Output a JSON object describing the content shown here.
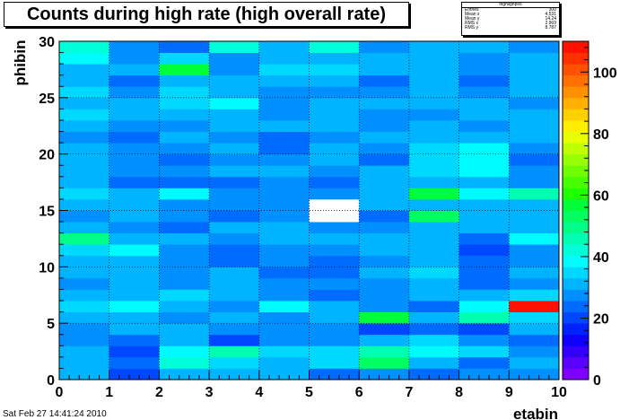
{
  "title": "Counts during high rate (high overall rate)",
  "footer": "Sat Feb 27 14:41:24 2010",
  "stats": {
    "name": "highlighpos",
    "rows": [
      {
        "label": "Entries",
        "value": "300"
      },
      {
        "label": "Mean x",
        "value": "4.531"
      },
      {
        "label": "Mean y",
        "value": "14.24"
      },
      {
        "label": "RMS x",
        "value": "2.969"
      },
      {
        "label": "RMS y",
        "value": "8.787"
      }
    ]
  },
  "chart_data": {
    "type": "heatmap",
    "title": "Counts during high rate (high overall rate)",
    "xlabel": "etabin",
    "ylabel": "phibin",
    "xlim": [
      0,
      10
    ],
    "ylim": [
      0,
      30
    ],
    "x_ticks": [
      "0",
      "1",
      "2",
      "3",
      "4",
      "5",
      "6",
      "7",
      "8",
      "9",
      "10"
    ],
    "y_ticks": [
      "0",
      "5",
      "10",
      "15",
      "20",
      "25",
      "30"
    ],
    "z_ticks": [
      "0",
      "20",
      "40",
      "60",
      "80",
      "100"
    ],
    "zlim": [
      0,
      110
    ],
    "grid": true,
    "palette": [
      "#7f00ff",
      "#5a00ff",
      "#3300ff",
      "#0d00ff",
      "#0022ff",
      "#0048ff",
      "#006cff",
      "#0090ff",
      "#00b4ff",
      "#00d8ff",
      "#00fbff",
      "#00ffd8",
      "#00ffb0",
      "#00ff88",
      "#00ff60",
      "#00ff38",
      "#20ff00",
      "#48ff00",
      "#70ff00",
      "#98ff00",
      "#c0ff00",
      "#e8ff00",
      "#ffee00",
      "#ffd000",
      "#ffb000",
      "#ff9000",
      "#ff7000",
      "#ff5000",
      "#ff3000",
      "#ff1000"
    ],
    "x_bins": [
      0,
      1,
      2,
      3,
      4,
      5,
      6,
      7,
      8,
      9
    ],
    "y_bins": [
      0,
      1,
      2,
      3,
      4,
      5,
      6,
      7,
      8,
      9,
      10,
      11,
      12,
      13,
      14,
      15,
      16,
      17,
      18,
      19,
      20,
      21,
      22,
      23,
      24,
      25,
      26,
      27,
      28,
      29
    ],
    "values": [
      [
        30,
        20,
        30,
        32,
        30,
        24,
        28,
        22,
        26,
        28
      ],
      [
        30,
        24,
        42,
        36,
        32,
        34,
        52,
        30,
        22,
        32
      ],
      [
        30,
        20,
        38,
        44,
        34,
        34,
        44,
        38,
        36,
        28
      ],
      [
        28,
        24,
        32,
        20,
        26,
        26,
        30,
        36,
        28,
        22
      ],
      [
        26,
        30,
        30,
        28,
        26,
        26,
        20,
        24,
        20,
        32
      ],
      [
        32,
        30,
        26,
        30,
        28,
        30,
        58,
        30,
        46,
        36
      ],
      [
        36,
        38,
        32,
        28,
        38,
        32,
        26,
        24,
        38,
        110
      ],
      [
        32,
        32,
        34,
        30,
        28,
        24,
        28,
        30,
        32,
        36
      ],
      [
        28,
        32,
        28,
        30,
        28,
        28,
        28,
        30,
        22,
        28
      ],
      [
        30,
        30,
        26,
        30,
        22,
        24,
        30,
        34,
        22,
        32
      ],
      [
        30,
        32,
        26,
        24,
        28,
        24,
        28,
        30,
        24,
        28
      ],
      [
        34,
        40,
        26,
        24,
        26,
        28,
        30,
        30,
        20,
        28
      ],
      [
        48,
        32,
        30,
        28,
        30,
        30,
        30,
        30,
        24,
        40
      ],
      [
        30,
        28,
        24,
        30,
        30,
        28,
        28,
        30,
        32,
        30
      ],
      [
        28,
        30,
        26,
        24,
        28,
        120,
        24,
        54,
        30,
        30
      ],
      [
        30,
        30,
        26,
        28,
        26,
        120,
        30,
        30,
        30,
        32
      ],
      [
        36,
        30,
        38,
        26,
        26,
        28,
        30,
        56,
        38,
        46
      ],
      [
        30,
        24,
        24,
        24,
        28,
        24,
        30,
        30,
        30,
        28
      ],
      [
        32,
        26,
        26,
        30,
        30,
        28,
        30,
        34,
        38,
        28
      ],
      [
        30,
        28,
        24,
        28,
        26,
        30,
        24,
        36,
        40,
        24
      ],
      [
        30,
        28,
        28,
        30,
        24,
        30,
        28,
        34,
        40,
        28
      ],
      [
        28,
        24,
        30,
        28,
        24,
        28,
        30,
        30,
        32,
        30
      ],
      [
        30,
        28,
        28,
        30,
        30,
        30,
        26,
        30,
        28,
        32
      ],
      [
        34,
        30,
        32,
        32,
        26,
        30,
        26,
        28,
        30,
        30
      ],
      [
        32,
        30,
        34,
        38,
        26,
        32,
        30,
        32,
        32,
        28
      ],
      [
        36,
        28,
        34,
        30,
        28,
        28,
        28,
        32,
        26,
        30
      ],
      [
        32,
        24,
        30,
        30,
        30,
        30,
        24,
        30,
        24,
        30
      ],
      [
        30,
        30,
        56,
        28,
        34,
        36,
        30,
        30,
        26,
        30
      ],
      [
        40,
        28,
        34,
        26,
        32,
        30,
        30,
        30,
        28,
        30
      ],
      [
        42,
        28,
        22,
        42,
        30,
        42,
        28,
        32,
        30,
        28
      ]
    ]
  }
}
